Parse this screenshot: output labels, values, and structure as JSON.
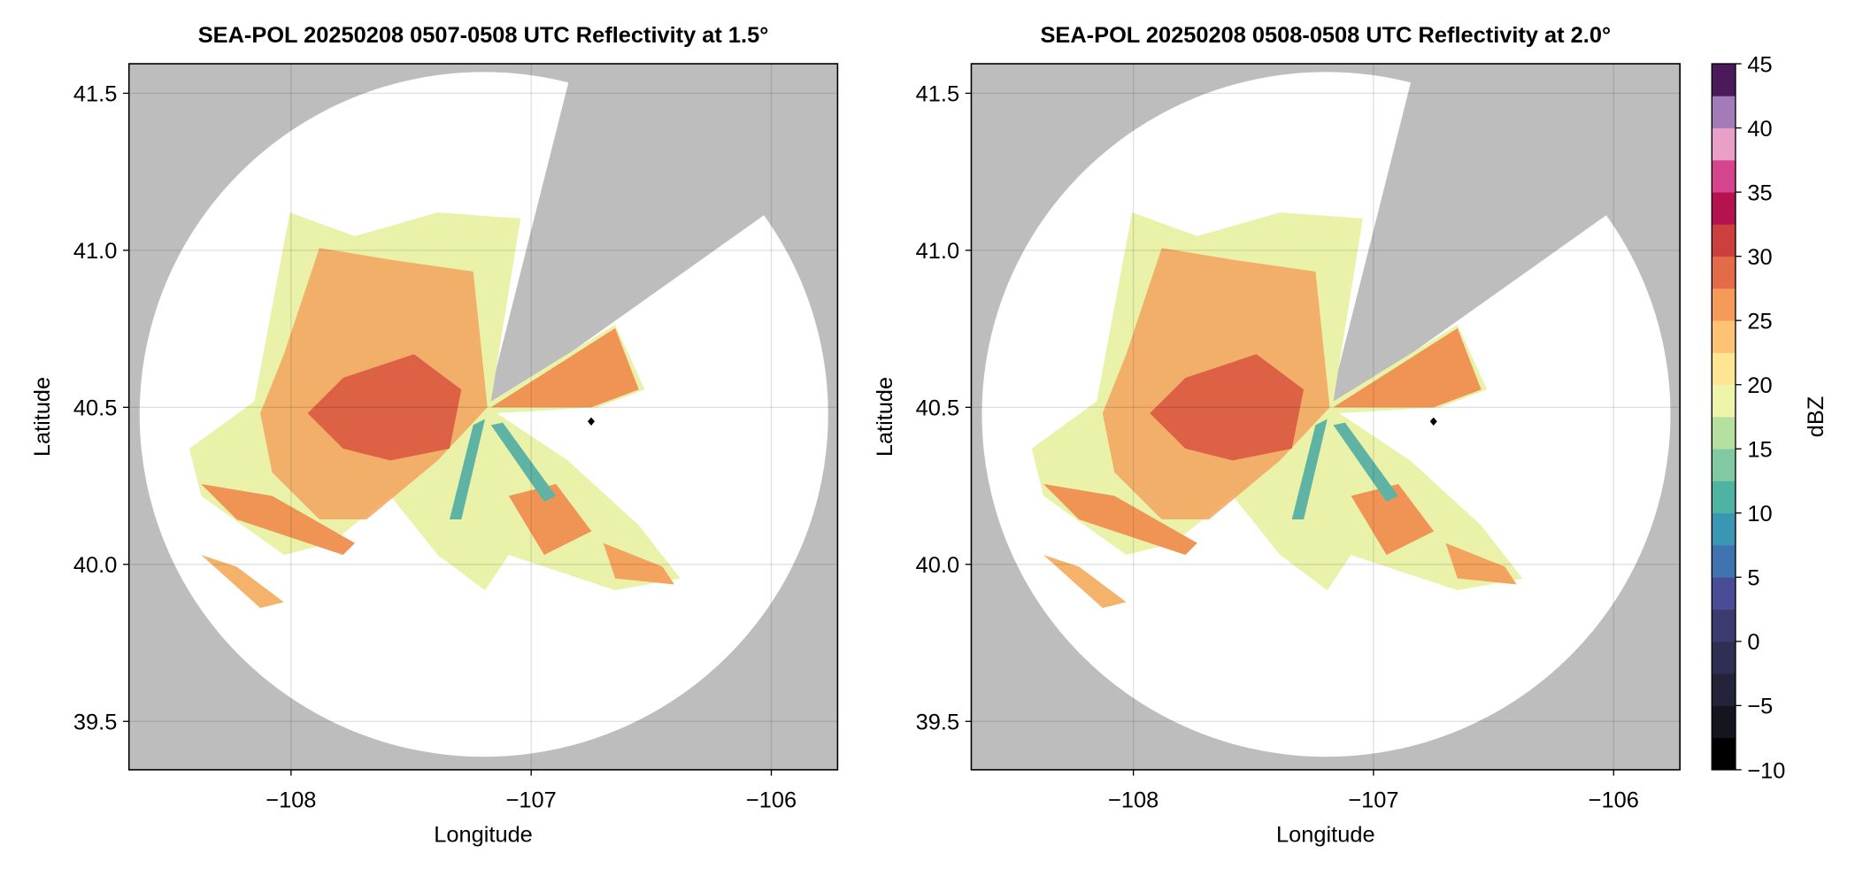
{
  "chart_data": [
    {
      "type": "radar-ppi",
      "title": "SEA-POL 20250208 0507-0508 UTC Reflectivity at 1.5°",
      "xlabel": "Longitude",
      "ylabel": "Latitude",
      "xlim": [
        -108.675,
        -105.724
      ],
      "ylim": [
        39.346,
        41.594
      ],
      "xticks": [
        {
          "value": -108,
          "label": "−108"
        },
        {
          "value": -107,
          "label": "−107"
        },
        {
          "value": -106,
          "label": "−106"
        }
      ],
      "yticks": [
        39.5,
        {
          "value": 40,
          "label": "40.0"
        },
        40.5,
        {
          "value": 41,
          "label": "41.0"
        },
        41.5
      ],
      "grid": true,
      "points": {
        "x": [
          -106.75
        ],
        "y": [
          40.455
        ]
      }
    },
    {
      "type": "radar-ppi",
      "title": "SEA-POL 20250208 0508-0508 UTC Reflectivity at 2.0°",
      "xlabel": "Longitude",
      "ylabel": "Latitude",
      "xlim": [
        -108.675,
        -105.724
      ],
      "ylim": [
        39.346,
        41.594
      ],
      "xticks": [
        {
          "value": -108,
          "label": "−108"
        },
        {
          "value": -107,
          "label": "−107"
        },
        {
          "value": -106,
          "label": "−106"
        }
      ],
      "yticks": [
        39.5,
        {
          "value": 40,
          "label": "40.0"
        },
        40.5,
        {
          "value": 41,
          "label": "41.0"
        },
        41.5
      ],
      "grid": true,
      "points": {
        "x": [
          -106.75
        ],
        "y": [
          40.455
        ]
      },
      "colorbar": {
        "label": "dBZ",
        "lim": [
          -10,
          45
        ],
        "ticks": [
          {
            "value": -10,
            "label": "−10"
          },
          {
            "value": -5,
            "label": "−5"
          },
          0,
          5,
          10,
          15,
          20,
          25,
          30,
          35,
          40,
          45
        ],
        "colors": [
          "#000000",
          "#15151f",
          "#23233a",
          "#2f2f55",
          "#3b3b70",
          "#4a4d96",
          "#3f74b0",
          "#3a97b4",
          "#4fb3a4",
          "#80c9a2",
          "#b5e0a0",
          "#eef5ab",
          "#fee594",
          "#fdc273",
          "#f69a5a",
          "#e46b47",
          "#cc3f3f",
          "#b5124f",
          "#d5448c",
          "#e8a0c8",
          "#a37bb8",
          "#4a1a5a"
        ]
      }
    }
  ]
}
